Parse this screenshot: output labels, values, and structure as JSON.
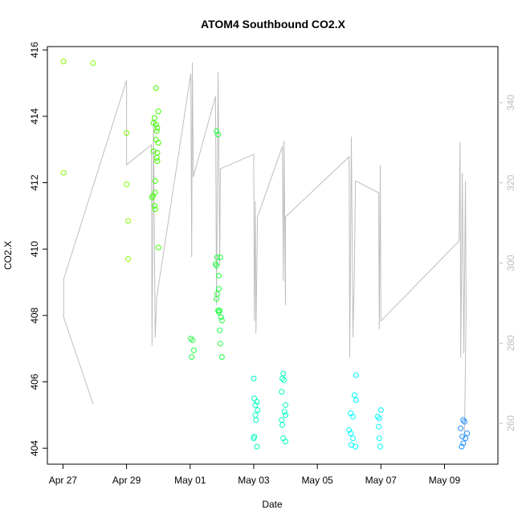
{
  "chart_data": {
    "type": "scatter",
    "title": "ATOM4 Southbound CO2.X",
    "xlabel": "Date",
    "ylabel": "CO2.X",
    "xlim": [
      -0.49,
      13.68
    ],
    "xticks": [
      {
        "value": 0,
        "label": "Apr 27"
      },
      {
        "value": 2,
        "label": "Apr 29"
      },
      {
        "value": 4,
        "label": "May 01"
      },
      {
        "value": 6,
        "label": "May 03"
      },
      {
        "value": 8,
        "label": "May 05"
      },
      {
        "value": 10,
        "label": "May 07"
      },
      {
        "value": 12,
        "label": "May 09"
      }
    ],
    "ylim": [
      403.52,
      416.1
    ],
    "yticks": [
      404,
      406,
      408,
      410,
      412,
      414,
      416
    ],
    "y2lim": [
      249.8,
      354.0
    ],
    "y2ticks": [
      260,
      280,
      300,
      320,
      340
    ],
    "points": {
      "x": [
        0.02,
        0.02,
        0.95,
        2.0,
        2.0,
        2.05,
        2.05,
        2.93,
        3.0,
        2.88,
        2.85,
        2.93,
        2.97,
        2.95,
        2.93,
        3.0,
        2.85,
        2.97,
        2.95,
        2.97,
        2.9,
        2.9,
        2.83,
        2.8,
        2.88,
        2.9,
        3.0,
        4.02,
        4.08,
        4.12,
        4.05,
        4.83,
        4.88,
        4.85,
        4.95,
        4.8,
        4.83,
        4.9,
        4.9,
        4.85,
        4.83,
        4.88,
        4.93,
        4.9,
        4.97,
        5.0,
        4.93,
        4.95,
        5.0,
        6.0,
        6.02,
        6.1,
        6.05,
        6.12,
        6.05,
        6.07,
        6.02,
        6.0,
        6.1,
        6.93,
        6.9,
        6.95,
        6.88,
        7.0,
        6.97,
        7.0,
        6.88,
        6.9,
        6.93,
        7.0,
        9.22,
        9.17,
        9.22,
        9.05,
        9.12,
        9.0,
        9.05,
        9.12,
        9.07,
        9.2,
        10.0,
        9.9,
        9.95,
        9.93,
        9.95,
        9.98,
        12.59,
        12.63,
        12.51,
        12.71,
        12.56,
        12.66,
        12.59,
        12.54
      ],
      "values": [
        415.65,
        412.3,
        415.6,
        413.5,
        411.95,
        410.85,
        409.7,
        414.85,
        414.15,
        413.95,
        413.8,
        413.75,
        413.65,
        413.55,
        413.3,
        413.2,
        412.95,
        412.9,
        412.75,
        412.65,
        412.05,
        411.7,
        411.6,
        411.55,
        411.3,
        411.2,
        410.05,
        407.3,
        407.25,
        406.95,
        406.75,
        413.55,
        413.45,
        409.75,
        409.75,
        409.55,
        409.5,
        409.2,
        408.8,
        408.65,
        408.5,
        408.15,
        408.15,
        408.1,
        407.95,
        407.85,
        407.55,
        407.15,
        406.75,
        406.1,
        405.5,
        405.4,
        405.3,
        405.15,
        405.0,
        404.85,
        404.35,
        404.3,
        404.05,
        406.25,
        406.1,
        406.05,
        405.7,
        405.3,
        405.1,
        405.0,
        404.85,
        404.7,
        404.3,
        404.2,
        406.2,
        405.6,
        405.45,
        405.05,
        404.95,
        404.55,
        404.45,
        404.3,
        404.1,
        404.05,
        405.15,
        404.95,
        404.9,
        404.65,
        404.3,
        404.05,
        404.85,
        404.8,
        404.6,
        404.45,
        404.35,
        404.3,
        404.15,
        404.05
      ],
      "colors": [
        "#80ff00",
        "#80ff00",
        "#80ff00",
        "#80ff00",
        "#80ff00",
        "#80ff00",
        "#80ff00",
        "#40ff00",
        "#40ff00",
        "#40ff00",
        "#40ff00",
        "#40ff00",
        "#40ff00",
        "#40ff00",
        "#40ff00",
        "#40ff00",
        "#40ff00",
        "#40ff00",
        "#40ff00",
        "#40ff00",
        "#40ff00",
        "#40ff00",
        "#40ff00",
        "#40ff00",
        "#40ff00",
        "#40ff00",
        "#40ff00",
        "#20ff40",
        "#20ff40",
        "#20ff40",
        "#20ff40",
        "#20ff40",
        "#20ff40",
        "#20ff40",
        "#20ff40",
        "#20ff40",
        "#20ff40",
        "#20ff40",
        "#20ff40",
        "#20ff40",
        "#20ff40",
        "#20ff40",
        "#20ff40",
        "#20ff40",
        "#20ff40",
        "#20ff40",
        "#20ff40",
        "#20ff40",
        "#20ff40",
        "#00ffc0",
        "#00ffc0",
        "#00ffc0",
        "#00ffc0",
        "#00ffc0",
        "#00ffc0",
        "#00ffc0",
        "#00ffc0",
        "#00ffc0",
        "#00ffc0",
        "#00ffc0",
        "#00ffc0",
        "#00ffc0",
        "#00ffc0",
        "#00ffc0",
        "#00ffc0",
        "#00ffc0",
        "#00ffc0",
        "#00ffc0",
        "#00ffc0",
        "#00ffc0",
        "#00ffff",
        "#00ffff",
        "#00ffff",
        "#00ffff",
        "#00ffff",
        "#00ffff",
        "#00ffff",
        "#00ffff",
        "#00ffff",
        "#00ffff",
        "#00ffff",
        "#00ffff",
        "#00ffff",
        "#00ffff",
        "#00ffff",
        "#00ffff",
        "#2090ff",
        "#2090ff",
        "#2090ff",
        "#2090ff",
        "#2090ff",
        "#2090ff",
        "#2090ff",
        "#2090ff"
      ]
    },
    "line": {
      "axis": "y2",
      "color": "#bebebe",
      "x": [
        0.95,
        0.02,
        0.02,
        2.0,
        2.0,
        2.78,
        2.8,
        2.85,
        2.9,
        2.95,
        4.02,
        4.05,
        4.07,
        4.1,
        4.8,
        4.83,
        4.88,
        4.93,
        4.95,
        6.0,
        6.02,
        6.05,
        6.07,
        6.12,
        6.9,
        6.93,
        6.95,
        7.0,
        7.0,
        9.0,
        9.02,
        9.07,
        9.12,
        9.17,
        9.2,
        9.93,
        9.95,
        9.98,
        10.0,
        12.46,
        12.49,
        12.51,
        12.56,
        12.61,
        12.66,
        12.68,
        12.63
      ],
      "values": [
        264.8,
        286.5,
        295.9,
        345.6,
        324.5,
        329.5,
        279.4,
        335.5,
        281.4,
        291.5,
        347.2,
        301.5,
        350.0,
        321.5,
        341.6,
        289.5,
        347.6,
        299.5,
        323.5,
        327.1,
        285.5,
        315.5,
        282.4,
        311.5,
        329.1,
        295.5,
        330.5,
        289.5,
        311.5,
        326.5,
        276.4,
        331.5,
        281.4,
        299.5,
        320.5,
        317.5,
        283.4,
        324.5,
        285.5,
        305.5,
        330.1,
        276.4,
        322.5,
        277.4,
        320.5,
        287.5,
        257.4
      ]
    }
  }
}
